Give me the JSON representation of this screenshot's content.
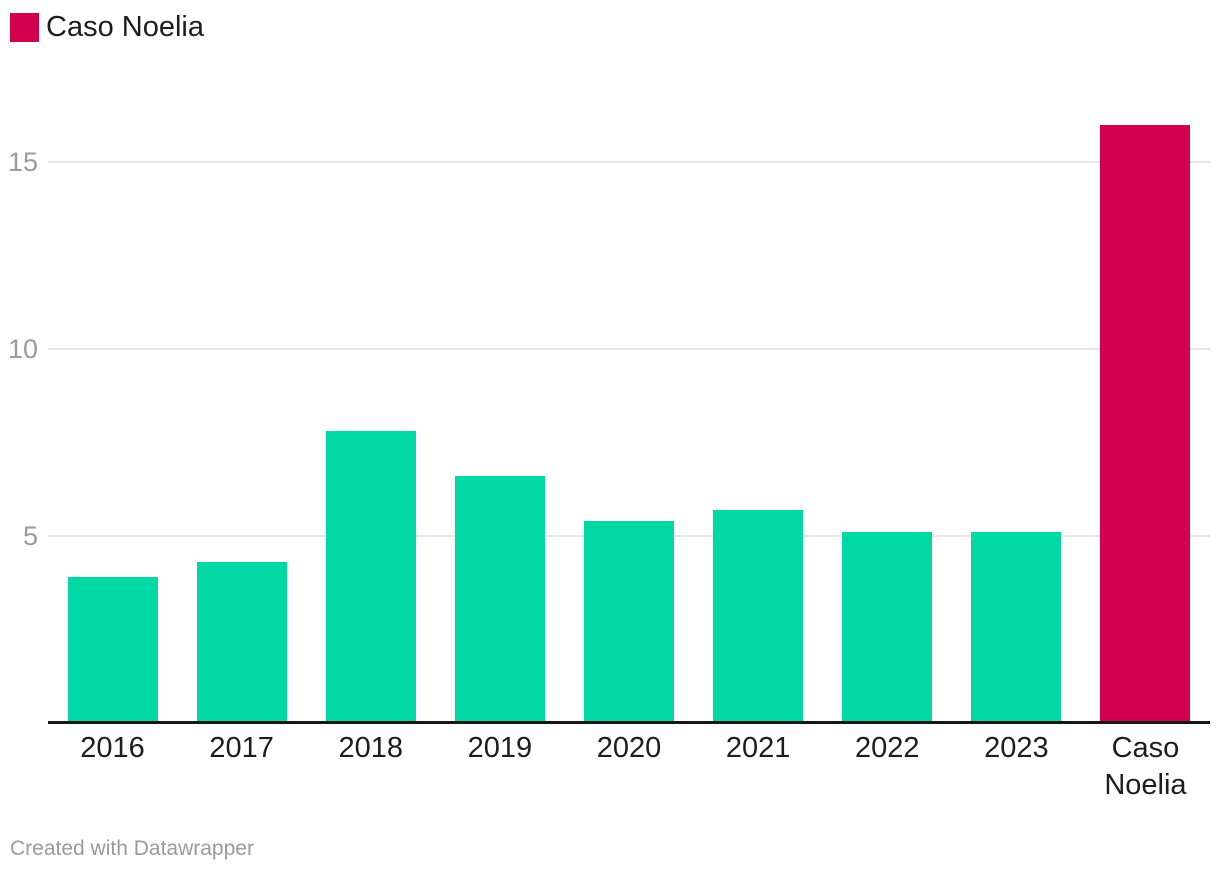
{
  "legend": {
    "label": "Caso Noelia",
    "swatch_color": "#D2004F"
  },
  "footer": {
    "text": "Created with Datawrapper"
  },
  "chart_data": {
    "type": "bar",
    "categories": [
      "2016",
      "2017",
      "2018",
      "2019",
      "2020",
      "2021",
      "2022",
      "2023",
      "Caso Noelia"
    ],
    "values": [
      3.9,
      4.3,
      7.8,
      6.6,
      5.4,
      5.7,
      5.1,
      5.1,
      16
    ],
    "bar_colors": [
      "#00D9A6",
      "#00D9A6",
      "#00D9A6",
      "#00D9A6",
      "#00D9A6",
      "#00D9A6",
      "#00D9A6",
      "#00D9A6",
      "#D2004F"
    ],
    "default_bar_color": "#00D9A6",
    "highlight_category": "Caso Noelia",
    "highlight_color": "#D2004F",
    "yticks": [
      5,
      10,
      15
    ],
    "ylim": [
      0,
      16.1
    ],
    "grid": true,
    "gridline_color": "#e6e6e6",
    "legend_entries": [
      {
        "label": "Caso Noelia",
        "color": "#D2004F"
      }
    ],
    "legend_position": "top-left"
  }
}
